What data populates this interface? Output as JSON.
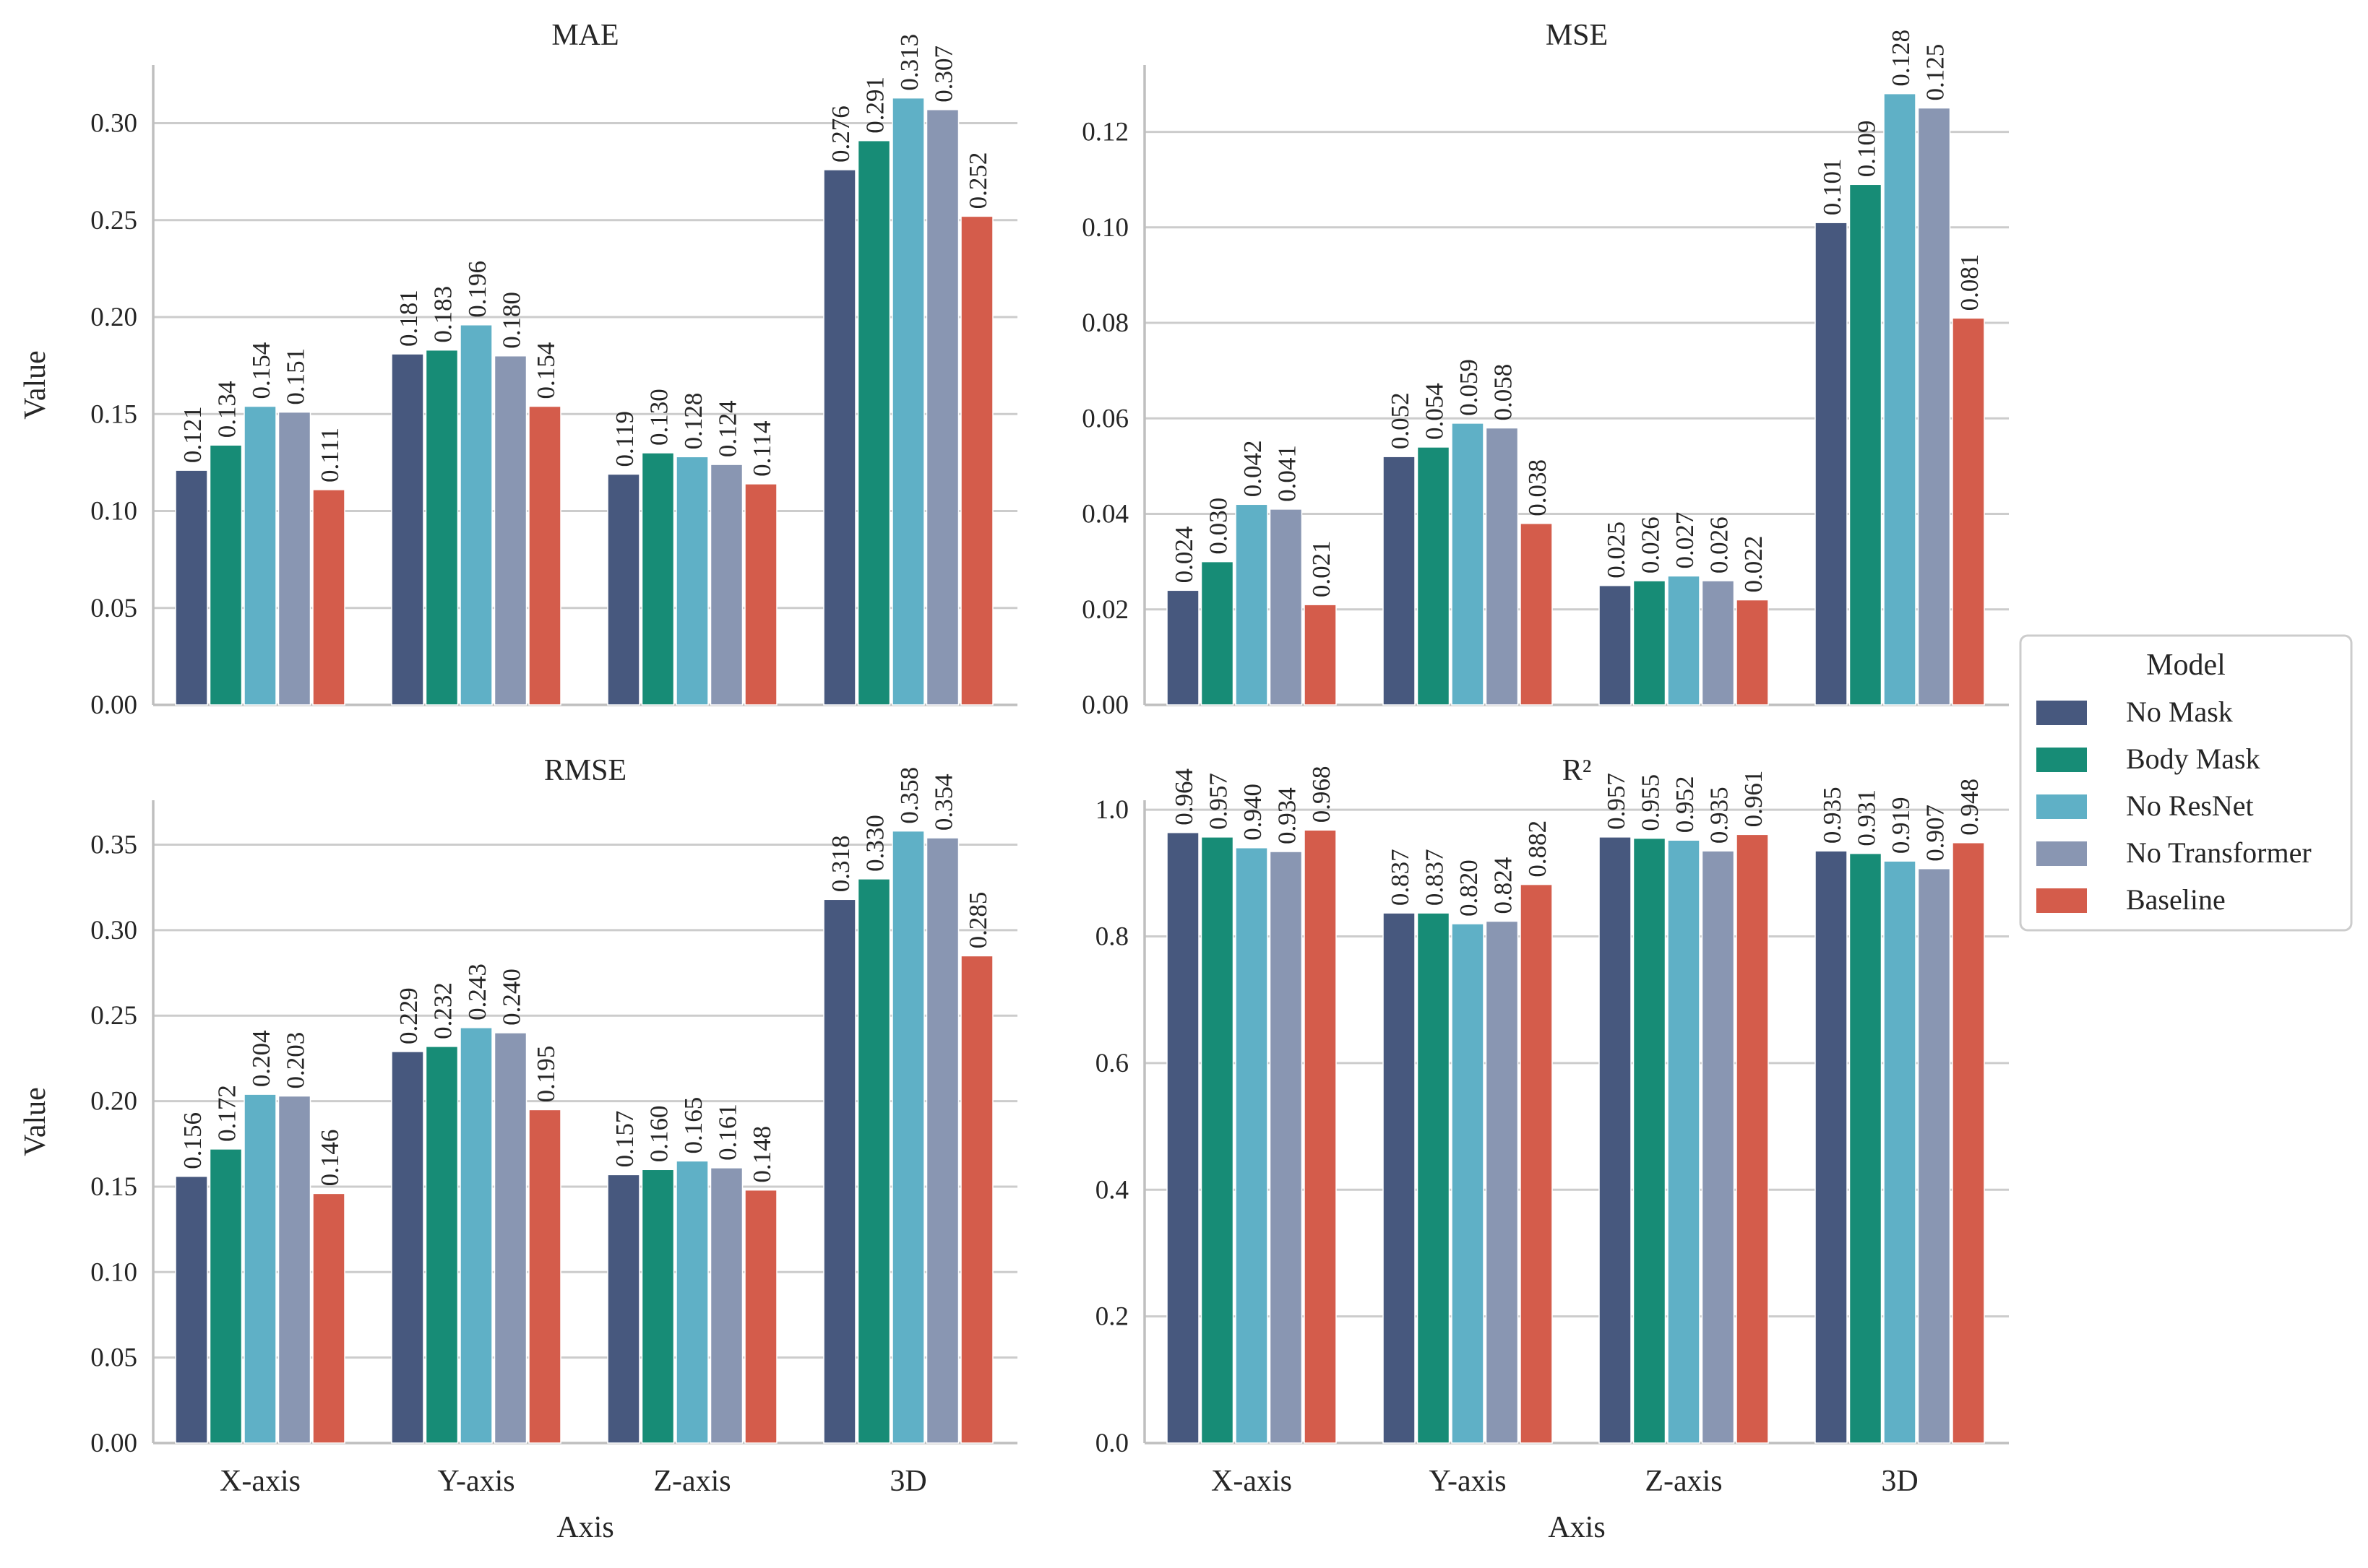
{
  "chart_data": [
    {
      "type": "bar",
      "title": "MAE",
      "xlabel": "",
      "ylabel": "Value",
      "ylim": [
        0,
        0.33
      ],
      "yticks": [
        "0.00",
        "0.05",
        "0.10",
        "0.15",
        "0.20",
        "0.25",
        "0.30"
      ],
      "categories": [
        "X-axis",
        "Y-axis",
        "Z-axis",
        "3D"
      ],
      "series": [
        {
          "name": "No Mask",
          "values": [
            0.121,
            0.181,
            0.119,
            0.276
          ],
          "labels": [
            "0.121",
            "0.181",
            "0.119",
            "0.276"
          ]
        },
        {
          "name": "Body Mask",
          "values": [
            0.134,
            0.183,
            0.13,
            0.291
          ],
          "labels": [
            "0.134",
            "0.183",
            "0.130",
            "0.291"
          ]
        },
        {
          "name": "No ResNet",
          "values": [
            0.154,
            0.196,
            0.128,
            0.313
          ],
          "labels": [
            "0.154",
            "0.196",
            "0.128",
            "0.313"
          ]
        },
        {
          "name": "No Transformer",
          "values": [
            0.151,
            0.18,
            0.124,
            0.307
          ],
          "labels": [
            "0.151",
            "0.180",
            "0.124",
            "0.307"
          ]
        },
        {
          "name": "Baseline",
          "values": [
            0.111,
            0.154,
            0.114,
            0.252
          ],
          "labels": [
            "0.111",
            "0.154",
            "0.114",
            "0.252"
          ]
        }
      ]
    },
    {
      "type": "bar",
      "title": "MSE",
      "xlabel": "",
      "ylabel": "",
      "ylim": [
        0,
        0.134
      ],
      "yticks": [
        "0.00",
        "0.02",
        "0.04",
        "0.06",
        "0.08",
        "0.10",
        "0.12"
      ],
      "categories": [
        "X-axis",
        "Y-axis",
        "Z-axis",
        "3D"
      ],
      "series": [
        {
          "name": "No Mask",
          "values": [
            0.024,
            0.052,
            0.025,
            0.101
          ],
          "labels": [
            "0.024",
            "0.052",
            "0.025",
            "0.101"
          ]
        },
        {
          "name": "Body Mask",
          "values": [
            0.03,
            0.054,
            0.026,
            0.109
          ],
          "labels": [
            "0.030",
            "0.054",
            "0.026",
            "0.109"
          ]
        },
        {
          "name": "No ResNet",
          "values": [
            0.042,
            0.059,
            0.027,
            0.128
          ],
          "labels": [
            "0.042",
            "0.059",
            "0.027",
            "0.128"
          ]
        },
        {
          "name": "No Transformer",
          "values": [
            0.041,
            0.058,
            0.026,
            0.125
          ],
          "labels": [
            "0.041",
            "0.058",
            "0.026",
            "0.125"
          ]
        },
        {
          "name": "Baseline",
          "values": [
            0.021,
            0.038,
            0.022,
            0.081
          ],
          "labels": [
            "0.021",
            "0.038",
            "0.022",
            "0.081"
          ]
        }
      ]
    },
    {
      "type": "bar",
      "title": "RMSE",
      "xlabel": "Axis",
      "ylabel": "Value",
      "ylim": [
        0,
        0.376
      ],
      "yticks": [
        "0.00",
        "0.05",
        "0.10",
        "0.15",
        "0.20",
        "0.25",
        "0.30",
        "0.35"
      ],
      "categories": [
        "X-axis",
        "Y-axis",
        "Z-axis",
        "3D"
      ],
      "series": [
        {
          "name": "No Mask",
          "values": [
            0.156,
            0.229,
            0.157,
            0.318
          ],
          "labels": [
            "0.156",
            "0.229",
            "0.157",
            "0.318"
          ]
        },
        {
          "name": "Body Mask",
          "values": [
            0.172,
            0.232,
            0.16,
            0.33
          ],
          "labels": [
            "0.172",
            "0.232",
            "0.160",
            "0.330"
          ]
        },
        {
          "name": "No ResNet",
          "values": [
            0.204,
            0.243,
            0.165,
            0.358
          ],
          "labels": [
            "0.204",
            "0.243",
            "0.165",
            "0.358"
          ]
        },
        {
          "name": "No Transformer",
          "values": [
            0.203,
            0.24,
            0.161,
            0.354
          ],
          "labels": [
            "0.203",
            "0.240",
            "0.161",
            "0.354"
          ]
        },
        {
          "name": "Baseline",
          "values": [
            0.146,
            0.195,
            0.148,
            0.285
          ],
          "labels": [
            "0.146",
            "0.195",
            "0.148",
            "0.285"
          ]
        }
      ]
    },
    {
      "type": "bar",
      "title": "R²",
      "xlabel": "Axis",
      "ylabel": "",
      "ylim": [
        0,
        1.015
      ],
      "yticks": [
        "0.0",
        "0.2",
        "0.4",
        "0.6",
        "0.8",
        "1.0"
      ],
      "categories": [
        "X-axis",
        "Y-axis",
        "Z-axis",
        "3D"
      ],
      "series": [
        {
          "name": "No Mask",
          "values": [
            0.964,
            0.837,
            0.957,
            0.935
          ],
          "labels": [
            "0.964",
            "0.837",
            "0.957",
            "0.935"
          ]
        },
        {
          "name": "Body Mask",
          "values": [
            0.957,
            0.837,
            0.955,
            0.931
          ],
          "labels": [
            "0.957",
            "0.837",
            "0.955",
            "0.931"
          ]
        },
        {
          "name": "No ResNet",
          "values": [
            0.94,
            0.82,
            0.952,
            0.919
          ],
          "labels": [
            "0.940",
            "0.820",
            "0.952",
            "0.919"
          ]
        },
        {
          "name": "No Transformer",
          "values": [
            0.934,
            0.824,
            0.935,
            0.907
          ],
          "labels": [
            "0.934",
            "0.824",
            "0.935",
            "0.907"
          ]
        },
        {
          "name": "Baseline",
          "values": [
            0.968,
            0.882,
            0.961,
            0.948
          ],
          "labels": [
            "0.968",
            "0.882",
            "0.961",
            "0.948"
          ]
        }
      ]
    }
  ],
  "legend": {
    "title": "Model",
    "placement": "right-center",
    "entries": [
      "No Mask",
      "Body Mask",
      "No ResNet",
      "No Transformer",
      "Baseline"
    ]
  },
  "colors": {
    "No Mask": "#47587e",
    "Body Mask": "#178c76",
    "No ResNet": "#5fb0c6",
    "No Transformer": "#8996b2",
    "Baseline": "#d45c4b",
    "grid": "#cccccc",
    "axis": "#bfbfbf"
  }
}
